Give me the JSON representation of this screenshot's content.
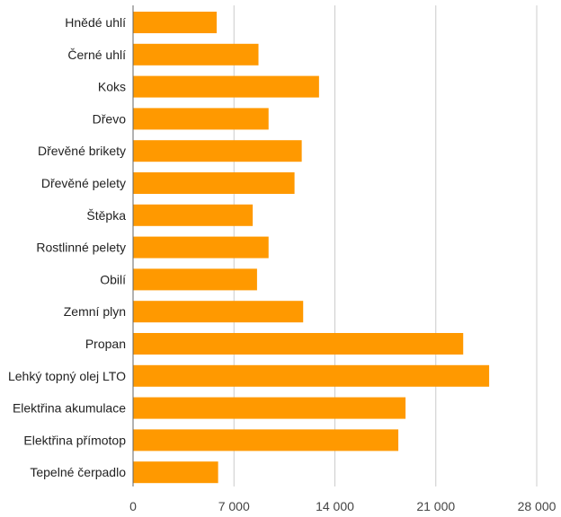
{
  "chart_data": {
    "type": "bar",
    "orientation": "horizontal",
    "title": "",
    "xlabel": "",
    "ylabel": "",
    "categories": [
      "Hnědé uhlí",
      "Černé uhlí",
      "Koks",
      "Dřevo",
      "Dřevěné brikety",
      "Dřevěné pelety",
      "Štěpka",
      "Rostlinné pelety",
      "Obilí",
      "Zemní plyn",
      "Propan",
      "Lehký topný olej LTO",
      "Elektřina akumulace",
      "Elektřina přímotop",
      "Tepelné čerpadlo"
    ],
    "values": [
      5800,
      8700,
      12900,
      9400,
      11700,
      11200,
      8300,
      9400,
      8600,
      11800,
      22900,
      24700,
      18900,
      18400,
      5900
    ],
    "xlim": [
      0,
      28000
    ],
    "ticks": [
      0,
      7000,
      14000,
      21000,
      28000
    ],
    "tick_labels": [
      "0",
      "7 000",
      "14 000",
      "21 000",
      "28 000"
    ],
    "bar_color": "#ff9900",
    "grid_color": "#cccccc",
    "grid": true,
    "legend": "none"
  }
}
